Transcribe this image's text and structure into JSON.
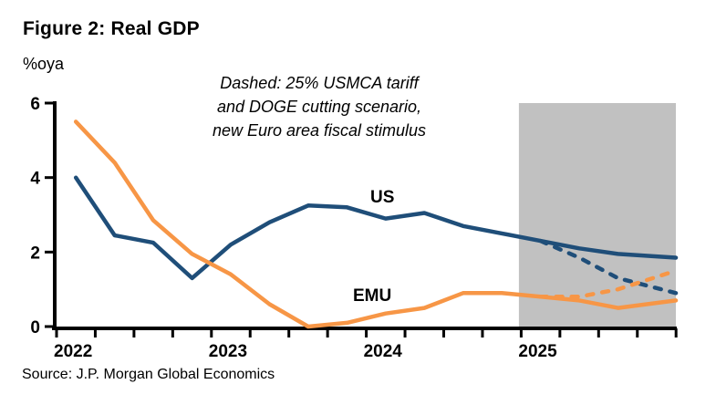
{
  "header": {
    "title": "Figure 2: Real GDP",
    "unit": "%oya"
  },
  "annotation": {
    "line1": "Dashed: 25% USMCA tariff",
    "line2": "and DOGE cutting scenario,",
    "line3": "new Euro area fiscal stimulus"
  },
  "source": "Source: J.P. Morgan Global Economics",
  "colors": {
    "us": "#1F4E79",
    "emu": "#F79646",
    "forecast_shading": "#C1C1C1",
    "axis": "#000000",
    "background": "#FFFFFF"
  },
  "chart_data": {
    "type": "line",
    "title": "Figure 2: Real GDP",
    "xlabel": "",
    "ylabel": "%oya",
    "ylim": [
      0,
      6
    ],
    "yticks": [
      0,
      2,
      4,
      6
    ],
    "grid": false,
    "legend": "inline-labels",
    "x_quarters": [
      "2022Q1",
      "2022Q2",
      "2022Q3",
      "2022Q4",
      "2023Q1",
      "2023Q2",
      "2023Q3",
      "2023Q4",
      "2024Q1",
      "2024Q2",
      "2024Q3",
      "2024Q4",
      "2025Q1",
      "2025Q2",
      "2025Q3",
      "2025Q4"
    ],
    "year_labels": [
      {
        "label": "2022",
        "tick_index": 0
      },
      {
        "label": "2023",
        "tick_index": 4
      },
      {
        "label": "2024",
        "tick_index": 8
      },
      {
        "label": "2025",
        "tick_index": 12
      }
    ],
    "series": [
      {
        "name": "US",
        "line_style": "solid",
        "color_key": "us",
        "values": [
          4.0,
          2.45,
          2.25,
          1.3,
          2.2,
          2.8,
          3.25,
          3.2,
          2.9,
          3.05,
          2.7,
          2.5,
          2.3,
          2.1,
          1.95,
          1.85
        ]
      },
      {
        "name": "EMU",
        "line_style": "solid",
        "color_key": "emu",
        "values": [
          5.5,
          4.4,
          2.85,
          1.95,
          1.4,
          0.6,
          0.0,
          0.1,
          0.35,
          0.5,
          0.9,
          0.9,
          0.8,
          0.7,
          0.5,
          0.7
        ]
      },
      {
        "name": "US tariff/DOGE scenario",
        "line_style": "dashed",
        "color_key": "us",
        "values": [
          null,
          null,
          null,
          null,
          null,
          null,
          null,
          null,
          null,
          null,
          null,
          null,
          2.3,
          1.85,
          1.3,
          0.9
        ]
      },
      {
        "name": "EMU fiscal stimulus scenario",
        "line_style": "dashed",
        "color_key": "emu",
        "values": [
          null,
          null,
          null,
          null,
          null,
          null,
          null,
          null,
          null,
          null,
          null,
          null,
          0.8,
          0.8,
          1.0,
          1.5
        ]
      }
    ],
    "series_labels": [
      {
        "text": "US",
        "x": 406,
        "y": 222
      },
      {
        "text": "EMU",
        "x": 387,
        "y": 330
      }
    ],
    "forecast_region": {
      "start_tick_index": 12,
      "covers": "2025"
    }
  }
}
